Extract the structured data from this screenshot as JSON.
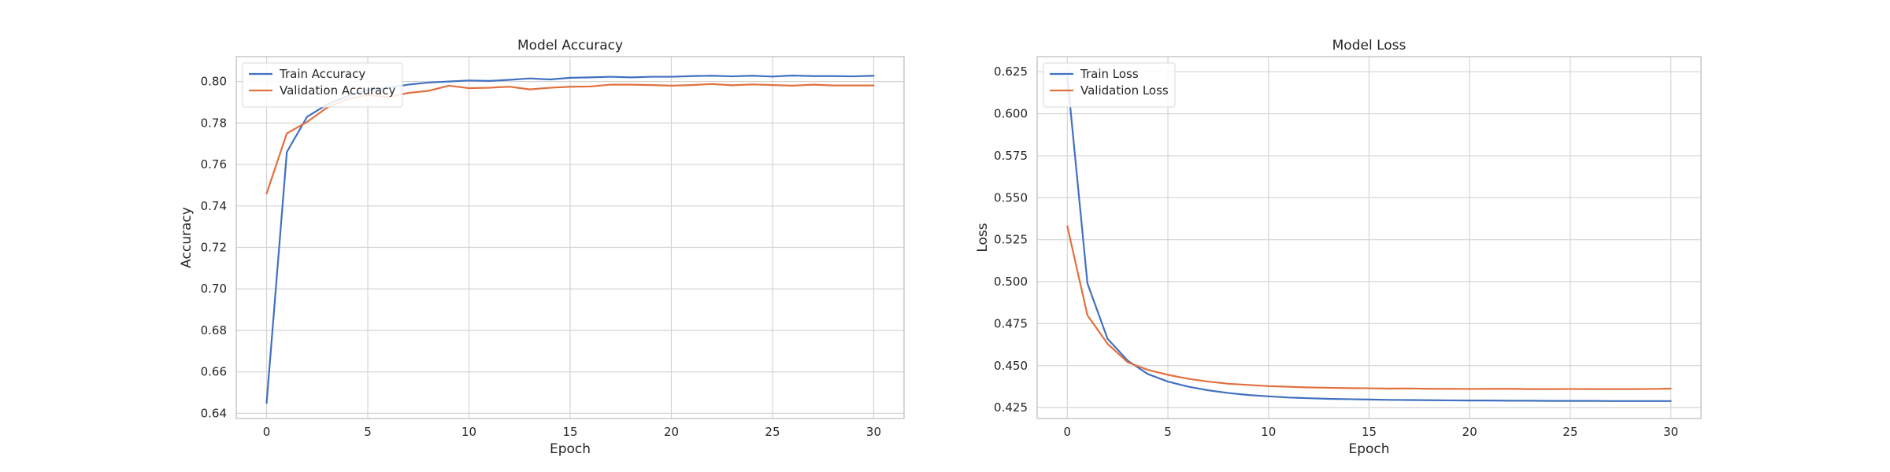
{
  "colors": {
    "train": "#4170c0",
    "validation": "#e2703f"
  },
  "chart_data": [
    {
      "type": "line",
      "title": "Model Accuracy",
      "xlabel": "Epoch",
      "ylabel": "Accuracy",
      "xlim": [
        -1.5,
        31.5
      ],
      "ylim": [
        0.6375,
        0.812
      ],
      "xticks": [
        0,
        5,
        10,
        15,
        20,
        25,
        30
      ],
      "yticks": [
        0.64,
        0.66,
        0.68,
        0.7,
        0.72,
        0.74,
        0.76,
        0.78,
        0.8
      ],
      "ytick_labels": [
        "0.64",
        "0.66",
        "0.68",
        "0.70",
        "0.72",
        "0.74",
        "0.76",
        "0.78",
        "0.80"
      ],
      "grid": true,
      "legend_position": "top-left",
      "x": [
        0,
        1,
        2,
        3,
        4,
        5,
        6,
        7,
        8,
        9,
        10,
        11,
        12,
        13,
        14,
        15,
        16,
        17,
        18,
        19,
        20,
        21,
        22,
        23,
        24,
        25,
        26,
        27,
        28,
        29,
        30
      ],
      "series": [
        {
          "name": "Train Accuracy",
          "color_key": "train",
          "values": [
            0.645,
            0.766,
            0.783,
            0.789,
            0.793,
            0.796,
            0.797,
            0.7985,
            0.7995,
            0.8,
            0.8005,
            0.8003,
            0.8008,
            0.8015,
            0.801,
            0.8018,
            0.802,
            0.8023,
            0.802,
            0.8023,
            0.8023,
            0.8026,
            0.8028,
            0.8025,
            0.8028,
            0.8024,
            0.8029,
            0.8026,
            0.8026,
            0.8025,
            0.8028
          ]
        },
        {
          "name": "Validation Accuracy",
          "color_key": "validation",
          "values": [
            0.746,
            0.775,
            0.7805,
            0.7875,
            0.7915,
            0.7935,
            0.7925,
            0.7945,
            0.7955,
            0.798,
            0.7968,
            0.797,
            0.7975,
            0.7962,
            0.797,
            0.7975,
            0.7976,
            0.7985,
            0.7985,
            0.7983,
            0.798,
            0.7983,
            0.7988,
            0.7982,
            0.7986,
            0.7983,
            0.798,
            0.7985,
            0.7981,
            0.7981,
            0.7981
          ]
        }
      ]
    },
    {
      "type": "line",
      "title": "Model Loss",
      "xlabel": "Epoch",
      "ylabel": "Loss",
      "xlim": [
        -1.5,
        31.5
      ],
      "ylim": [
        0.4185,
        0.634
      ],
      "xticks": [
        0,
        5,
        10,
        15,
        20,
        25,
        30
      ],
      "yticks": [
        0.425,
        0.45,
        0.475,
        0.5,
        0.525,
        0.55,
        0.575,
        0.6,
        0.625
      ],
      "ytick_labels": [
        "0.425",
        "0.450",
        "0.475",
        "0.500",
        "0.525",
        "0.550",
        "0.575",
        "0.600",
        "0.625"
      ],
      "grid": true,
      "legend_position": "top-left",
      "x": [
        0,
        1,
        2,
        3,
        4,
        5,
        6,
        7,
        8,
        9,
        10,
        11,
        12,
        13,
        14,
        15,
        16,
        17,
        18,
        19,
        20,
        21,
        22,
        23,
        24,
        25,
        26,
        27,
        28,
        29,
        30
      ],
      "series": [
        {
          "name": "Train Loss",
          "color_key": "train",
          "values": [
            0.622,
            0.499,
            0.466,
            0.453,
            0.445,
            0.4405,
            0.4375,
            0.4353,
            0.4337,
            0.4325,
            0.4317,
            0.431,
            0.4306,
            0.4302,
            0.43,
            0.4298,
            0.4296,
            0.4295,
            0.4294,
            0.4293,
            0.4292,
            0.4292,
            0.4291,
            0.4291,
            0.429,
            0.429,
            0.429,
            0.4289,
            0.4289,
            0.4289,
            0.4289
          ]
        },
        {
          "name": "Validation Loss",
          "color_key": "validation",
          "values": [
            0.533,
            0.48,
            0.463,
            0.452,
            0.4475,
            0.4445,
            0.4422,
            0.4405,
            0.4392,
            0.4385,
            0.4378,
            0.4374,
            0.437,
            0.4368,
            0.4366,
            0.4365,
            0.4363,
            0.4364,
            0.4362,
            0.4362,
            0.4361,
            0.4362,
            0.4362,
            0.436,
            0.436,
            0.4361,
            0.436,
            0.436,
            0.436,
            0.4361,
            0.4363
          ]
        }
      ]
    }
  ]
}
